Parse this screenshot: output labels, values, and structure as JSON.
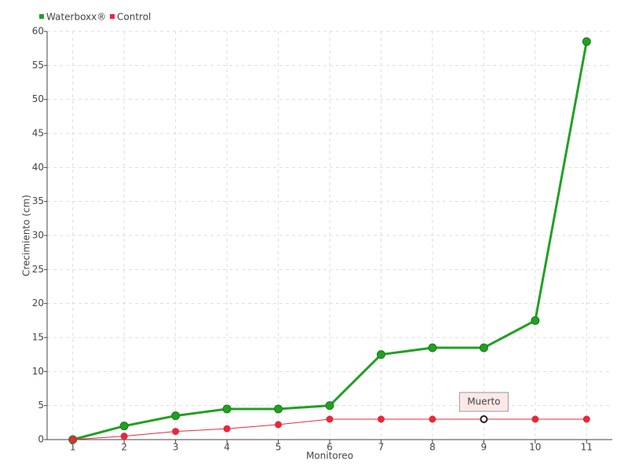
{
  "chart_data": {
    "type": "line",
    "x_label": "Monitoreo",
    "y_label": "Crecimiento (cm)",
    "categories": [
      "1",
      "2",
      "3",
      "4",
      "5",
      "6",
      "7",
      "8",
      "9",
      "10",
      "11"
    ],
    "series": [
      {
        "name": "Waterboxx®",
        "color": "#22a022",
        "values": [
          0,
          2,
          3.5,
          4.5,
          4.5,
          5,
          12.5,
          13.5,
          13.5,
          17.5,
          58.5
        ]
      },
      {
        "name": "Control",
        "color": "#e8283a",
        "values": [
          0,
          0.5,
          1.2,
          1.6,
          2.2,
          3,
          3,
          3,
          3,
          3,
          3
        ]
      }
    ],
    "annotations": [
      {
        "text": "Muerto",
        "series": "Control",
        "category": "9"
      }
    ],
    "ylim": [
      0,
      60
    ],
    "yticks": [
      0,
      5,
      10,
      15,
      20,
      25,
      30,
      35,
      40,
      45,
      50,
      55,
      60
    ],
    "grid": true,
    "legend": "top-left"
  }
}
